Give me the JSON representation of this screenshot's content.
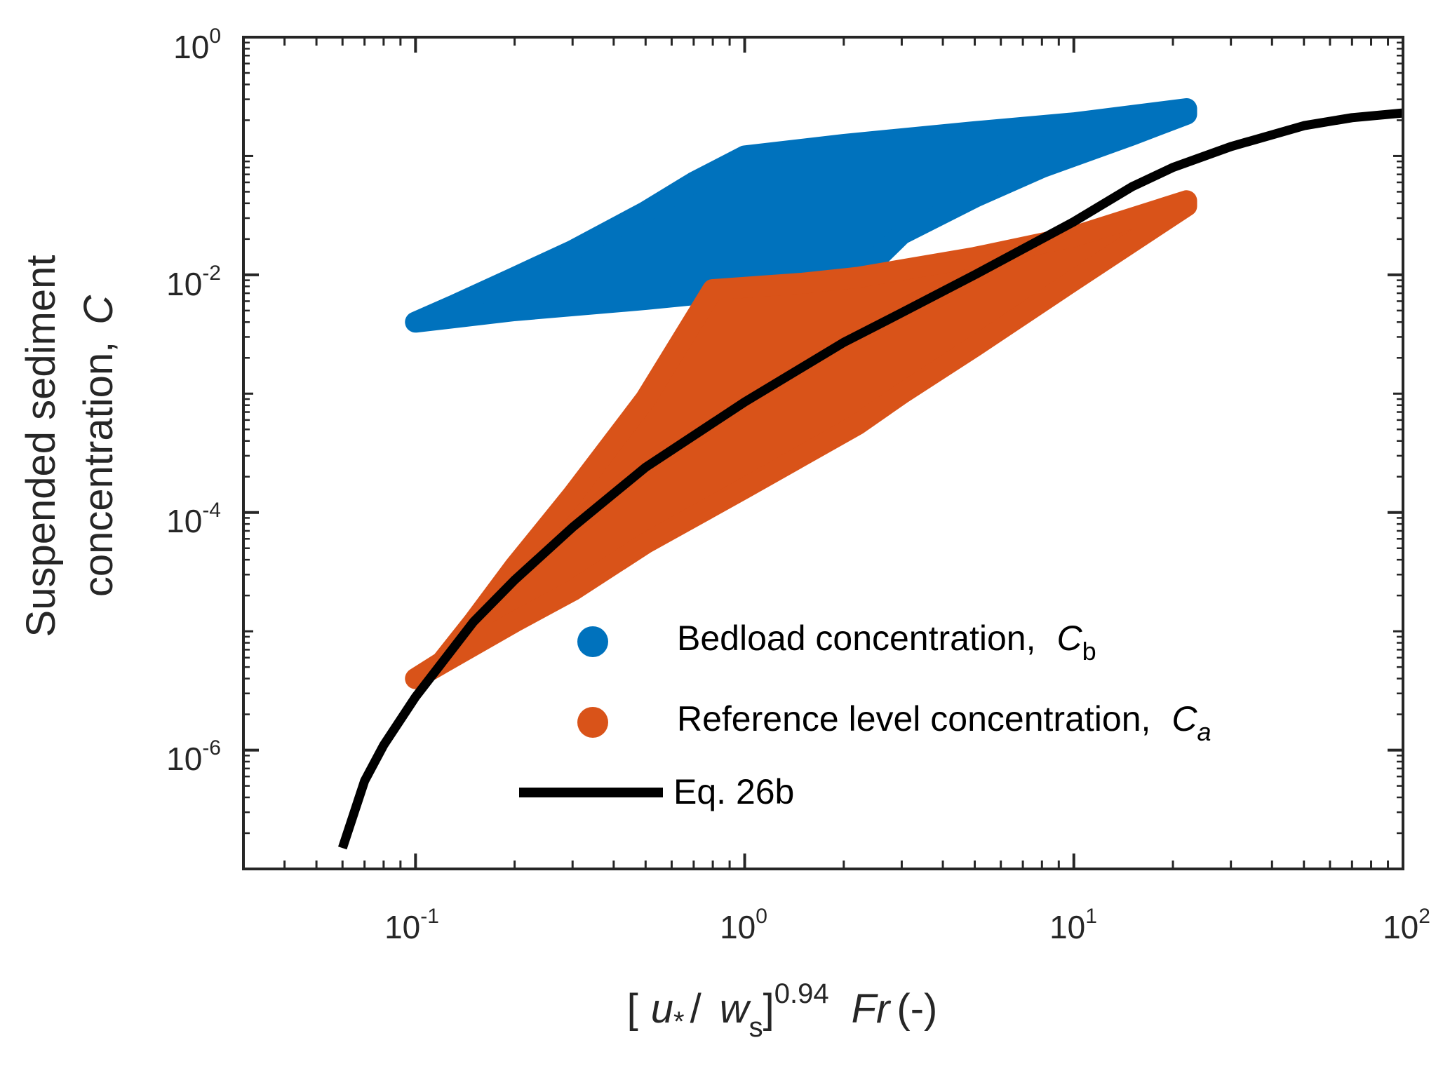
{
  "chart_data": {
    "type": "scatter",
    "scale": {
      "x": "log",
      "y": "log"
    },
    "xlim": [
      0.03,
      100
    ],
    "ylim": [
      1e-07,
      1
    ],
    "grid": false,
    "legend_position": "bottom-right",
    "x_ticks": [
      {
        "base": "10",
        "exp": "-1",
        "value": 0.1
      },
      {
        "base": "10",
        "exp": "0",
        "value": 1
      },
      {
        "base": "10",
        "exp": "1",
        "value": 10
      },
      {
        "base": "10",
        "exp": "2",
        "value": 100
      }
    ],
    "y_ticks": [
      {
        "base": "10",
        "exp": "0",
        "value": 1
      },
      {
        "base": "10",
        "exp": "-2",
        "value": 0.01
      },
      {
        "base": "10",
        "exp": "-4",
        "value": 0.0001
      },
      {
        "base": "10",
        "exp": "-6",
        "value": 1e-06
      }
    ],
    "xlabel": {
      "open": "[",
      "u": "u",
      "star": "*",
      "slash": "/",
      "w": "w",
      "w_sub": "s",
      "close": "]",
      "exponent": "0.94",
      "fr": "Fr",
      "unit": "(-)"
    },
    "ylabel": {
      "line1": "Suspended sediment",
      "line2": "concentration,",
      "symbol": "C"
    },
    "series": [
      {
        "name": "Bedload concentration,",
        "symbol": "C",
        "subscript": "b",
        "subscript_italic": false,
        "kind": "scatter-band",
        "color": "#0072BD",
        "outline": [
          [
            0.1,
            0.004
          ],
          [
            0.13,
            0.0055
          ],
          [
            0.2,
            0.0095
          ],
          [
            0.3,
            0.016
          ],
          [
            0.5,
            0.034
          ],
          [
            0.7,
            0.06
          ],
          [
            1.0,
            0.1
          ],
          [
            2.0,
            0.125
          ],
          [
            5.0,
            0.16
          ],
          [
            10.0,
            0.19
          ],
          [
            22.0,
            0.25
          ],
          [
            22.0,
            0.225
          ],
          [
            15.0,
            0.15
          ],
          [
            8.0,
            0.08
          ],
          [
            5.0,
            0.045
          ],
          [
            3.0,
            0.022
          ],
          [
            2.2,
            0.0095
          ],
          [
            1.0,
            0.0075
          ],
          [
            0.5,
            0.0062
          ],
          [
            0.2,
            0.005
          ],
          [
            0.1,
            0.004
          ]
        ]
      },
      {
        "name": "Reference level concentration,",
        "symbol": "C",
        "subscript": "a",
        "subscript_italic": true,
        "kind": "scatter-band",
        "color": "#D95319",
        "outline": [
          [
            0.1,
            4e-06
          ],
          [
            0.12,
            5.5e-06
          ],
          [
            0.15,
            1.2e-05
          ],
          [
            0.2,
            3.5e-05
          ],
          [
            0.3,
            0.00014
          ],
          [
            0.5,
            0.0009
          ],
          [
            0.8,
            0.0075
          ],
          [
            1.5,
            0.0085
          ],
          [
            2.2,
            0.0095
          ],
          [
            5.0,
            0.014
          ],
          [
            10.0,
            0.021
          ],
          [
            22.0,
            0.042
          ],
          [
            22.0,
            0.038
          ],
          [
            10.0,
            0.009
          ],
          [
            5.0,
            0.0025
          ],
          [
            3.0,
            0.001
          ],
          [
            2.2,
            0.00055
          ],
          [
            1.0,
            0.00016
          ],
          [
            0.5,
            5.5e-05
          ],
          [
            0.3,
            2.2e-05
          ],
          [
            0.2,
            1.2e-05
          ],
          [
            0.1,
            4e-06
          ]
        ]
      },
      {
        "name": "Eq. 26b",
        "kind": "line",
        "color": "#000000",
        "x": [
          0.06,
          0.07,
          0.08,
          0.1,
          0.15,
          0.2,
          0.3,
          0.5,
          1.0,
          2.0,
          3.0,
          5.0,
          10.0,
          15.0,
          20.0,
          30.0,
          50.0,
          70.0,
          100.0
        ],
        "y": [
          1.5e-07,
          5.5e-07,
          1.1e-06,
          2.8e-06,
          1.2e-05,
          2.7e-05,
          7.5e-05,
          0.00024,
          0.00085,
          0.0027,
          0.0048,
          0.01,
          0.028,
          0.055,
          0.08,
          0.12,
          0.18,
          0.21,
          0.23
        ]
      }
    ]
  }
}
